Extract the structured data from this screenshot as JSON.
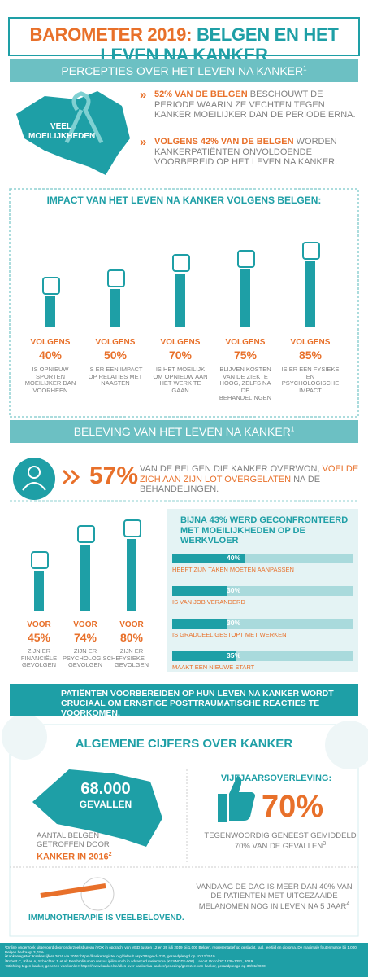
{
  "header": {
    "title_a": "BAROMETER 2019:",
    "title_b": "BELGEN EN HET LEVEN NA KANKER"
  },
  "perceptions": {
    "title": "PERCEPTIES OVER HET LEVEN NA KANKER",
    "sup": "1",
    "map_label": "VEEL MOEILIJKHEDEN",
    "points": [
      {
        "highlight": "52% VAN DE BELGEN",
        "text": "BESCHOUWT DE PERIODE WAARIN ZE VECHTEN TEGEN KANKER MOEILIJKER DAN DE PERIODE ERNA."
      },
      {
        "highlight": "VOLGENS 42% VAN DE BELGEN",
        "text": "WORDEN KANKERPATIËNTEN ONVOLDOENDE VOORBEREID OP HET LEVEN NA KANKER."
      }
    ]
  },
  "impact": {
    "title": "IMPACT VAN HET LEVEN NA KANKER VOLGENS BELGEN:",
    "items": [
      {
        "prefix": "VOLGENS",
        "value": 40,
        "label": "40%",
        "text": "IS OPNIEUW SPORTEN MOEILIJKER DAN VOORHEEN"
      },
      {
        "prefix": "VOLGENS",
        "value": 50,
        "label": "50%",
        "text": "IS ER EEN IMPACT OP RELATIES MET NAASTEN"
      },
      {
        "prefix": "VOLGENS",
        "value": 70,
        "label": "70%",
        "text": "IS HET MOEILIJK OM OPNIEUW AAN HET WERK TE GAAN"
      },
      {
        "prefix": "VOLGENS",
        "value": 75,
        "label": "75%",
        "text": "BLIJVEN KOSTEN VAN DE ZIEKTE HOOG, ZELFS NA DE BEHANDELINGEN"
      },
      {
        "prefix": "VOLGENS",
        "value": 85,
        "label": "85%",
        "text": "IS ER EEN FYSIEKE EN PSYCHOLOGISCHE IMPACT"
      }
    ]
  },
  "experience": {
    "title": "BELEVING VAN HET LEVEN NA KANKER",
    "sup": "1",
    "stat": "57%",
    "text_a": "VAN DE BELGEN DIE KANKER OVERWON,",
    "highlight": "VOELDE ZICH AAN ZIJN LOT OVERGELATEN",
    "text_b": "NA DE BEHANDELINGEN.",
    "items": [
      {
        "prefix": "VOOR",
        "value": 45,
        "label": "45%",
        "text": "ZIJN ER FINANCIËLE GEVOLGEN"
      },
      {
        "prefix": "VOOR",
        "value": 74,
        "label": "74%",
        "text": "ZIJN ER PSYCHOLOGISCHE GEVOLGEN"
      },
      {
        "prefix": "VOOR",
        "value": 80,
        "label": "80%",
        "text": "ZIJN ER FYSIEKE GEVOLGEN"
      }
    ],
    "work": {
      "title": "BIJNA 43% WERD GECONFRONTEERD MET MOEILIJKHEDEN OP DE WERKVLOER",
      "bars": [
        {
          "value": 40,
          "label": "40%",
          "text": "HEEFT ZIJN TAKEN MOETEN AANPASSEN"
        },
        {
          "value": 30,
          "label": "30%",
          "text": "IS VAN JOB VERANDERD"
        },
        {
          "value": 30,
          "label": "30%",
          "text": "IS GRADUEEL GESTOPT MET WERKEN"
        },
        {
          "value": 35,
          "label": "35%",
          "text": "MAAKT EEN NIEUWE START"
        }
      ]
    }
  },
  "callout": {
    "text": "PATIËNTEN VOORBEREIDEN OP HUN LEVEN NA KANKER WORDT CRUCIAAL OM ERNSTIGE POSTTRAUMATISCHE REACTIES TE VOORKOMEN."
  },
  "general": {
    "title": "ALGEMENE CIJFERS OVER KANKER",
    "cases": "68.000",
    "cases_unit": "GEVALLEN",
    "cases_text": "AANTAL BELGEN GETROFFEN DOOR",
    "cases_highlight": "KANKER IN 2016",
    "cases_sup": "2",
    "survival_title": "VIJFJAARSOVERLEVING:",
    "survival": "70%",
    "survival_text": "TEGENWOORDIG GENEEST GEMIDDELD 70% VAN DE GEVALLEN",
    "survival_sup": "3",
    "immuno": "IMMUNOTHERAPIE IS VEELBELOVEND.",
    "melanoma": "VANDAAG DE DAG IS MEER DAN 40% VAN DE PATIËNTEN MET UITGEZAAIDE MELANOMEN NOG IN LEVEN NA 5 JAAR",
    "melanoma_sup": "4"
  },
  "footer": {
    "notes": [
      "¹Online onderzoek uitgevoerd door onderzoeksbureau iVOX in opdracht van MSD tussen 12 en 26 juli 2019 bij 1.000 Belgen, representatief op geslacht, taal, leeftijd en diploma. De maximale foutenmarge bij 1.000 Belgen bedraagt 3,02%.",
      "²Kankerregister: Kankercijfers 2016 via 2016: https://kankerregister.org/default.aspx?PageId=230, geraadpleegd op 10/12/2019.",
      "³Robert C, Ribas A, Schachter J, et al: Pembrolizumab versus ipilimumab in advanced melanoma (KEYNOTE-006). Lancet Oncol 20:1239-1251, 2019.",
      "⁴Stichting tegen kanker, genezen van kanker: https://www.kanker.be/alles-over-kanker/na-kanker/genezing/genezen-van-kanker, geraadpleegd op 30/01/2020"
    ]
  }
}
